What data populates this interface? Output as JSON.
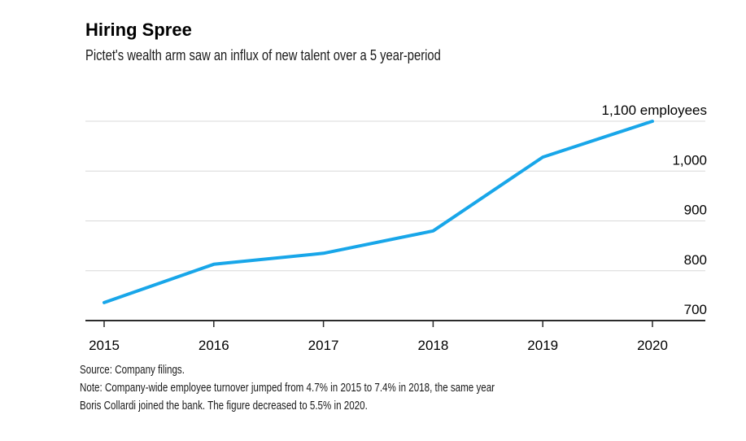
{
  "header": {
    "title": "Hiring Spree",
    "subtitle": "Pictet's wealth arm saw an influx of new talent over a 5 year-period"
  },
  "chart_data": {
    "type": "line",
    "title": "Hiring Spree",
    "subtitle": "Pictet's wealth arm saw an influx of new talent over a 5 year-period",
    "x": [
      2015,
      2016,
      2017,
      2018,
      2019,
      2020
    ],
    "x_tick_labels": [
      "2015",
      "2016",
      "2017",
      "2018",
      "2019",
      "2020"
    ],
    "series": [
      {
        "name": "employees",
        "values": [
          736,
          813,
          835,
          880,
          1028,
          1100
        ]
      }
    ],
    "ylim": [
      700,
      1100
    ],
    "yticks": [
      {
        "value": 700,
        "label": "700"
      },
      {
        "value": 800,
        "label": "800"
      },
      {
        "value": 900,
        "label": "900"
      },
      {
        "value": 1000,
        "label": "1,000"
      },
      {
        "value": 1100,
        "label": "1,100 employees"
      }
    ],
    "grid": "horizontal-only",
    "legend": "none",
    "colors": {
      "line": "#18A6E9",
      "gridline": "#d8d8d8",
      "axis": "#2b2b2b",
      "text": "#000000"
    }
  },
  "footer": {
    "source": "Source: Company filings.",
    "note_line1": "Note: Company-wide employee turnover jumped from 4.7% in 2015 to 7.4% in 2018, the same year",
    "note_line2": "Boris Collardi joined the bank. The figure decreased to 5.5% in 2020."
  }
}
